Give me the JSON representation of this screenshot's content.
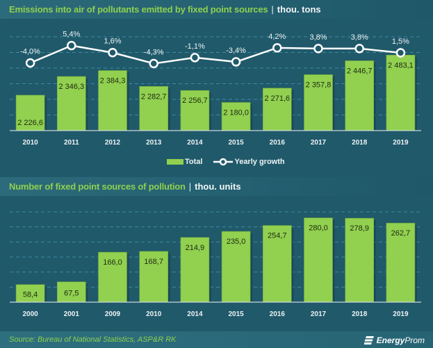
{
  "header": {
    "title": "Emissions into air of pollutants emitted by fixed point sources",
    "separator": "|",
    "unit": "thou. tons"
  },
  "section2": {
    "title": "Number of fixed point sources of pollution",
    "separator": "|",
    "unit": "thou. units"
  },
  "footer": {
    "source": "Source: Bureau of National Statistics, ASP&R RK",
    "brand_energy": "Energy",
    "brand_prom": "Prom"
  },
  "colors": {
    "bar": "#92d050",
    "line": "#ffffff",
    "background": "#20596a",
    "grid": "#3d8aa2",
    "title_accent": "#8fd04e"
  },
  "chart_data": [
    {
      "type": "bar+line",
      "title": "Emissions into air of pollutants emitted by fixed point sources | thou. tons",
      "categories": [
        "2010",
        "2011",
        "2012",
        "2013",
        "2014",
        "2015",
        "2016",
        "2017",
        "2018",
        "2019"
      ],
      "series": [
        {
          "name": "Total",
          "type": "bar",
          "values": [
            2226.6,
            2346.3,
            2384.3,
            2282.7,
            2256.7,
            2180.0,
            2271.6,
            2357.8,
            2446.7,
            2483.1
          ],
          "labels": [
            "2 226,6",
            "2 346,3",
            "2 384,3",
            "2 282,7",
            "2 256,7",
            "2 180,0",
            "2 271,6",
            "2 357,8",
            "2 446,7",
            "2 483,1"
          ]
        },
        {
          "name": "Yearly growth",
          "type": "line",
          "values": [
            -4.0,
            5.4,
            1.6,
            -4.3,
            -1.1,
            -3.4,
            4.2,
            3.8,
            3.8,
            1.5
          ],
          "labels": [
            "-4,0%",
            "5,4%",
            "1,6%",
            "-4,3%",
            "-1,1%",
            "-3,4%",
            "4,2%",
            "3,8%",
            "3,8%",
            "1,5%"
          ]
        }
      ],
      "ylim": [
        2000,
        2600
      ],
      "grid": true,
      "legend": {
        "placement": "bottom",
        "entries": [
          "Total",
          "Yearly growth"
        ]
      }
    },
    {
      "type": "bar",
      "title": "Number of fixed point sources of pollution | thou. units",
      "categories": [
        "2000",
        "2001",
        "2009",
        "2010",
        "2014",
        "2015",
        "2016",
        "2017",
        "2018",
        "2019"
      ],
      "values": [
        58.4,
        67.5,
        166.0,
        168.7,
        214.9,
        235.0,
        254.7,
        280.0,
        278.9,
        262.7
      ],
      "labels": [
        "58,4",
        "67,5",
        "166,0",
        "168,7",
        "214,9",
        "235,0",
        "254,7",
        "280,0",
        "278,9",
        "262,7"
      ],
      "ylim": [
        0,
        300
      ],
      "grid": true
    }
  ]
}
